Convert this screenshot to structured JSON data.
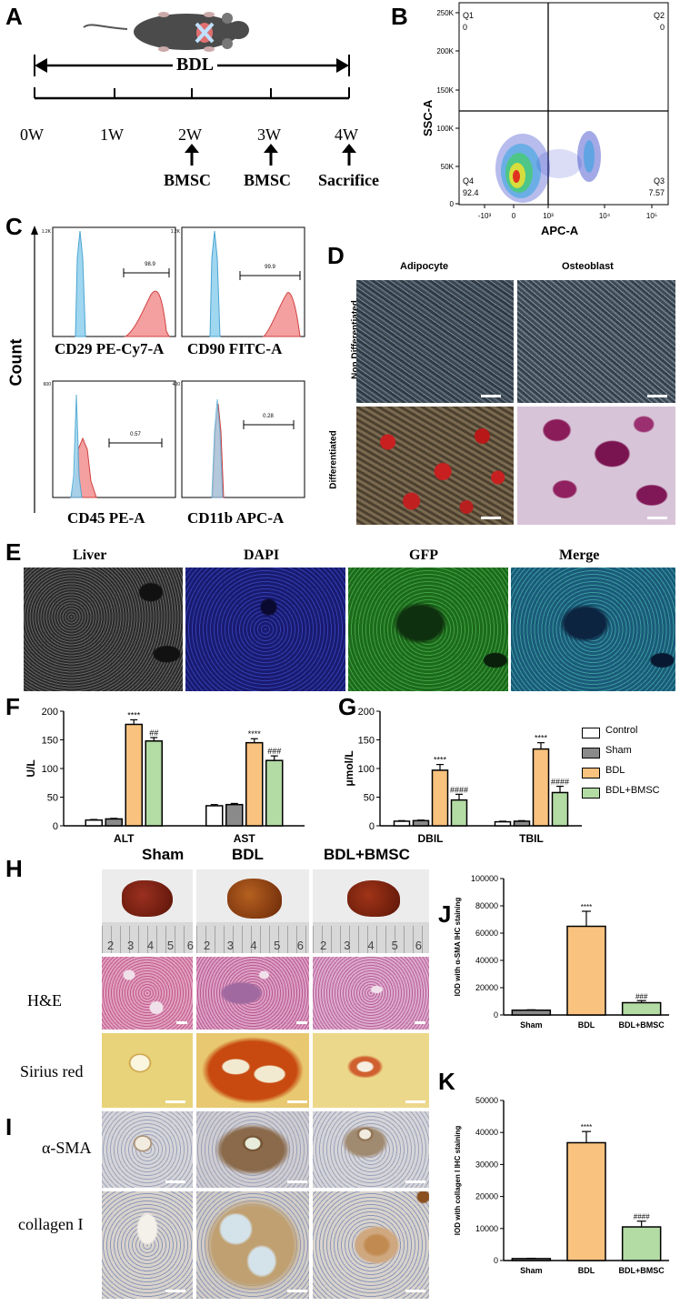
{
  "panels": {
    "A": "A",
    "B": "B",
    "C": "C",
    "D": "D",
    "E": "E",
    "F": "F",
    "G": "G",
    "H": "H",
    "I": "I",
    "J": "J",
    "K": "K"
  },
  "panelA": {
    "bdl": "BDL",
    "ticks": [
      "0W",
      "1W",
      "2W",
      "3W",
      "4W"
    ],
    "events": [
      "BMSC",
      "BMSC",
      "Sacrifice"
    ]
  },
  "panelB": {
    "ylabel": "SSC-A",
    "xlabel": "APC-A",
    "yticks": [
      "250K",
      "200K",
      "150K",
      "100K",
      "50K",
      "0"
    ],
    "xticks": [
      "-10³",
      "0",
      "10³",
      "10⁴",
      "10⁵"
    ],
    "quadrants": {
      "q1": "Q1",
      "q1v": "0",
      "q2": "Q2",
      "q2v": "0",
      "q3": "Q3",
      "q3v": "7.57",
      "q4": "Q4",
      "q4v": "92.4"
    }
  },
  "panelC": {
    "ylabel": "Count",
    "plots": [
      {
        "label": "CD29 PE-Cy7-A",
        "value": "98.9"
      },
      {
        "label": "CD90 FITC-A",
        "value": "99.9"
      },
      {
        "label": "CD45 PE-A",
        "value": "0.57"
      },
      {
        "label": "CD11b APC-A",
        "value": "0.28"
      }
    ],
    "yticks_top": [
      "1.2K",
      "1.2K"
    ],
    "yticks_bottom": [
      "600",
      "400"
    ]
  },
  "panelD": {
    "cols": [
      "Adipocyte",
      "Osteoblast"
    ],
    "rows": [
      "Non Differentiated",
      "Differentiated"
    ]
  },
  "panelE": {
    "cols": [
      "Liver",
      "DAPI",
      "GFP",
      "Merge"
    ]
  },
  "panelH": {
    "cols": [
      "Sham",
      "BDL",
      "BDL+BMSC"
    ],
    "rows": [
      "H&E",
      "Sirius red"
    ],
    "ruler": [
      "2",
      "3",
      "4",
      "5",
      "6"
    ]
  },
  "panelI": {
    "rows": [
      "α-SMA",
      "collagen I"
    ]
  },
  "legend": [
    "Control",
    "Sham",
    "BDL",
    "BDL+BMSC"
  ],
  "colors": {
    "control": "#ffffff",
    "sham": "#8a8a8a",
    "bdl": "#f9c27e",
    "bmsc": "#b3dba4"
  },
  "chart_data": [
    {
      "id": "F",
      "type": "bar",
      "ylabel": "U/L",
      "ylim": [
        0,
        200
      ],
      "yticks": [
        "0",
        "50",
        "100",
        "150",
        "200"
      ],
      "categories": [
        "ALT",
        "AST"
      ],
      "series": [
        {
          "name": "Control",
          "values": [
            10,
            35
          ]
        },
        {
          "name": "Sham",
          "values": [
            12,
            37
          ]
        },
        {
          "name": "BDL",
          "values": [
            177,
            145
          ]
        },
        {
          "name": "BDL+BMSC",
          "values": [
            148,
            114
          ]
        }
      ],
      "errors": [
        [
          1,
          2
        ],
        [
          1,
          2
        ],
        [
          8,
          7
        ],
        [
          6,
          8
        ]
      ],
      "annotations": [
        {
          "category": "ALT",
          "series": "BDL",
          "text": "****"
        },
        {
          "category": "ALT",
          "series": "BDL+BMSC",
          "text": "##"
        },
        {
          "category": "AST",
          "series": "BDL",
          "text": "****"
        },
        {
          "category": "AST",
          "series": "BDL+BMSC",
          "text": "###"
        }
      ]
    },
    {
      "id": "G",
      "type": "bar",
      "ylabel": "μmol/L",
      "ylim": [
        0,
        200
      ],
      "yticks": [
        "0",
        "50",
        "100",
        "150",
        "200"
      ],
      "categories": [
        "DBIL",
        "TBIL"
      ],
      "series": [
        {
          "name": "Control",
          "values": [
            8,
            7
          ]
        },
        {
          "name": "Sham",
          "values": [
            9,
            8
          ]
        },
        {
          "name": "BDL",
          "values": [
            97,
            134
          ]
        },
        {
          "name": "BDL+BMSC",
          "values": [
            45,
            58
          ]
        }
      ],
      "errors": [
        [
          1,
          1
        ],
        [
          1,
          1
        ],
        [
          10,
          11
        ],
        [
          10,
          11
        ]
      ],
      "annotations": [
        {
          "category": "DBIL",
          "series": "BDL",
          "text": "****"
        },
        {
          "category": "DBIL",
          "series": "BDL+BMSC",
          "text": "####"
        },
        {
          "category": "TBIL",
          "series": "BDL",
          "text": "****"
        },
        {
          "category": "TBIL",
          "series": "BDL+BMSC",
          "text": "####"
        }
      ]
    },
    {
      "id": "J",
      "type": "bar",
      "ylabel": "IOD with α-SMA IHC staining",
      "ylim": [
        0,
        100000
      ],
      "yticks": [
        "0",
        "20000",
        "40000",
        "60000",
        "80000",
        "100000"
      ],
      "categories": [
        "Sham",
        "BDL",
        "BDL+BMSC"
      ],
      "values": [
        3500,
        65000,
        9000
      ],
      "errors": [
        300,
        11000,
        1500
      ],
      "annotations": [
        "",
        "****",
        "###"
      ]
    },
    {
      "id": "K",
      "type": "bar",
      "ylabel": "IOD with collagen I IHC staining",
      "ylim": [
        0,
        50000
      ],
      "yticks": [
        "0",
        "10000",
        "20000",
        "30000",
        "40000",
        "50000"
      ],
      "categories": [
        "Sham",
        "BDL",
        "BDL+BMSC"
      ],
      "values": [
        600,
        36800,
        10500
      ],
      "errors": [
        100,
        3500,
        1800
      ],
      "annotations": [
        "",
        "****",
        "####"
      ]
    }
  ]
}
